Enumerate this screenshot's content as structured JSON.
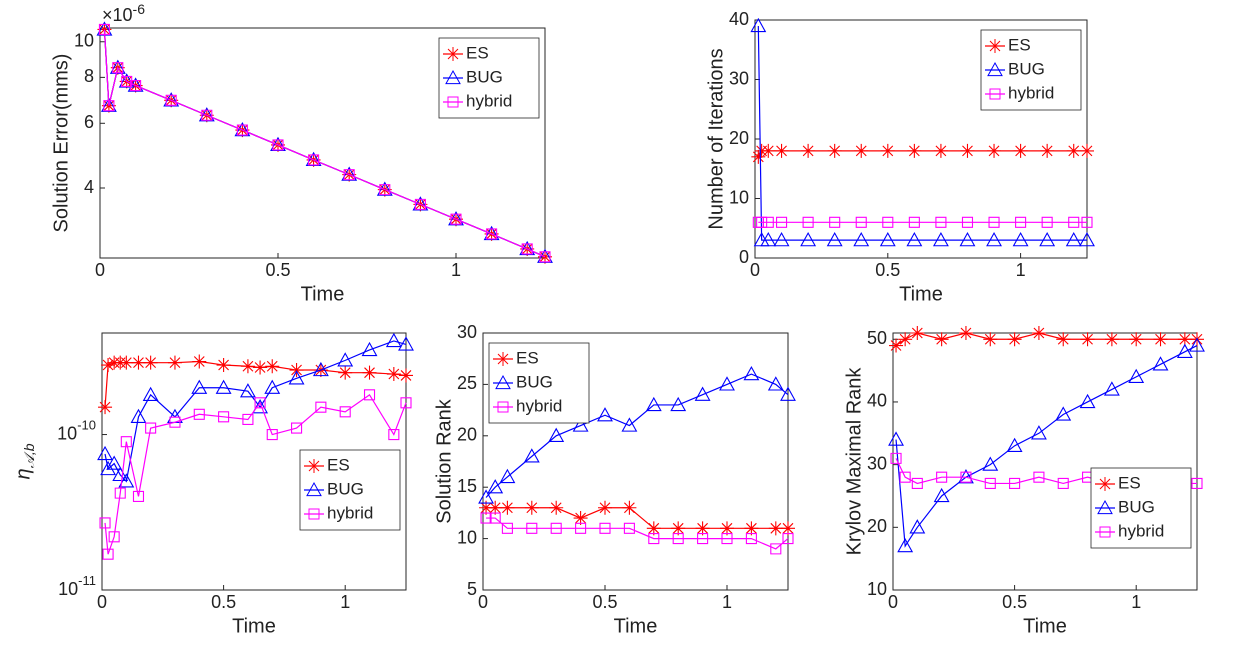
{
  "chart_data": [
    {
      "type": "line",
      "xlabel": "Time",
      "ylabel": "Solution Error(mms)",
      "ylog": true,
      "y_exponent": {
        "base": "×10",
        "power": "-6"
      },
      "xlim": [
        0,
        1.25
      ],
      "xticks": [
        0,
        0.5,
        1
      ],
      "ylim": [
        2.58e-06,
        1.09e-05
      ],
      "yticks": [
        {
          "value": 4e-06,
          "label": "4"
        },
        {
          "value": 6e-06,
          "label": "6"
        },
        {
          "value": 8e-06,
          "label": "8"
        },
        {
          "value": 1e-05,
          "label": "10"
        }
      ],
      "legend": "upper right",
      "x": [
        0.0125,
        0.025,
        0.05,
        0.075,
        0.1,
        0.2,
        0.3,
        0.4,
        0.5,
        0.6,
        0.7,
        0.8,
        0.9,
        1.0,
        1.1,
        1.2,
        1.25
      ],
      "series": [
        {
          "name": "ES",
          "color": "#ff0000",
          "marker": "star",
          "values": [
            1.08e-05,
            6.7e-06,
            8.5e-06,
            7.8e-06,
            7.6e-06,
            6.93e-06,
            6.31e-06,
            5.75e-06,
            5.24e-06,
            4.77e-06,
            4.35e-06,
            3.96e-06,
            3.61e-06,
            3.29e-06,
            3e-06,
            2.73e-06,
            2.6e-06
          ]
        },
        {
          "name": "BUG",
          "color": "#0000ff",
          "marker": "triangle",
          "values": [
            1.08e-05,
            6.7e-06,
            8.5e-06,
            7.8e-06,
            7.6e-06,
            6.93e-06,
            6.31e-06,
            5.75e-06,
            5.24e-06,
            4.77e-06,
            4.35e-06,
            3.96e-06,
            3.61e-06,
            3.29e-06,
            3e-06,
            2.73e-06,
            2.6e-06
          ]
        },
        {
          "name": "hybrid",
          "color": "#ff00ff",
          "marker": "square",
          "values": [
            1.08e-05,
            6.7e-06,
            8.5e-06,
            7.8e-06,
            7.6e-06,
            6.93e-06,
            6.31e-06,
            5.75e-06,
            5.24e-06,
            4.77e-06,
            4.35e-06,
            3.96e-06,
            3.61e-06,
            3.29e-06,
            3e-06,
            2.73e-06,
            2.6e-06
          ]
        }
      ]
    },
    {
      "type": "line",
      "xlabel": "Time",
      "ylabel": "Number of Iterations",
      "ylog": false,
      "xlim": [
        0,
        1.25
      ],
      "xticks": [
        0,
        0.5,
        1
      ],
      "ylim": [
        0,
        40
      ],
      "yticks": [
        0,
        10,
        20,
        30,
        40
      ],
      "legend": "upper right",
      "x": [
        0.0125,
        0.025,
        0.05,
        0.1,
        0.2,
        0.3,
        0.4,
        0.5,
        0.6,
        0.7,
        0.8,
        0.9,
        1.0,
        1.1,
        1.2,
        1.25
      ],
      "series": [
        {
          "name": "ES",
          "color": "#ff0000",
          "marker": "star",
          "values": [
            17,
            18,
            18,
            18,
            18,
            18,
            18,
            18,
            18,
            18,
            18,
            18,
            18,
            18,
            18,
            18
          ]
        },
        {
          "name": "BUG",
          "color": "#0000ff",
          "marker": "triangle",
          "values": [
            39,
            3,
            3,
            3,
            3,
            3,
            3,
            3,
            3,
            3,
            3,
            3,
            3,
            3,
            3,
            3
          ]
        },
        {
          "name": "hybrid",
          "color": "#ff00ff",
          "marker": "square",
          "values": [
            6,
            6,
            6,
            6,
            6,
            6,
            6,
            6,
            6,
            6,
            6,
            6,
            6,
            6,
            6,
            6
          ]
        }
      ]
    },
    {
      "type": "line",
      "xlabel": "Time",
      "ylabel": "η",
      "ylabel_sub": "𝒜,b",
      "ylog": true,
      "xlim": [
        0,
        1.25
      ],
      "xticks": [
        0,
        0.5,
        1
      ],
      "ylim": [
        1e-11,
        4.5e-10
      ],
      "yticks": [
        {
          "value": 1e-11,
          "label": "10^-11"
        },
        {
          "value": 1e-10,
          "label": "10^-10"
        }
      ],
      "legend": "lower right",
      "x": [
        0.0125,
        0.025,
        0.05,
        0.075,
        0.1,
        0.15,
        0.2,
        0.3,
        0.4,
        0.5,
        0.6,
        0.65,
        0.7,
        0.8,
        0.9,
        1.0,
        1.1,
        1.2,
        1.25
      ],
      "series": [
        {
          "name": "ES",
          "color": "#ff0000",
          "marker": "star",
          "values": [
            1.5e-10,
            2.8e-10,
            2.9e-10,
            2.9e-10,
            2.9e-10,
            2.9e-10,
            2.9e-10,
            2.9e-10,
            2.95e-10,
            2.8e-10,
            2.75e-10,
            2.7e-10,
            2.75e-10,
            2.6e-10,
            2.6e-10,
            2.5e-10,
            2.5e-10,
            2.45e-10,
            2.4e-10
          ]
        },
        {
          "name": "BUG",
          "color": "#0000ff",
          "marker": "triangle",
          "values": [
            7.5e-11,
            6e-11,
            6.5e-11,
            5.5e-11,
            5e-11,
            1.3e-10,
            1.8e-10,
            1.3e-10,
            2e-10,
            2e-10,
            1.9e-10,
            1.5e-10,
            2e-10,
            2.3e-10,
            2.6e-10,
            3e-10,
            3.5e-10,
            4e-10,
            3.8e-10
          ]
        },
        {
          "name": "hybrid",
          "color": "#ff00ff",
          "marker": "square",
          "values": [
            2.7e-11,
            1.7e-11,
            2.2e-11,
            4.2e-11,
            9e-11,
            4e-11,
            1.1e-10,
            1.2e-10,
            1.35e-10,
            1.3e-10,
            1.25e-10,
            1.6e-10,
            1e-10,
            1.1e-10,
            1.5e-10,
            1.4e-10,
            1.8e-10,
            1e-10,
            1.6e-10
          ]
        }
      ]
    },
    {
      "type": "line",
      "xlabel": "Time",
      "ylabel": "Solution Rank",
      "ylog": false,
      "xlim": [
        0,
        1.25
      ],
      "xticks": [
        0,
        0.5,
        1
      ],
      "ylim": [
        5,
        30
      ],
      "yticks": [
        5,
        10,
        15,
        20,
        25,
        30
      ],
      "legend": "upper left",
      "x": [
        0.0125,
        0.05,
        0.1,
        0.2,
        0.3,
        0.4,
        0.5,
        0.6,
        0.7,
        0.8,
        0.9,
        1.0,
        1.1,
        1.2,
        1.25
      ],
      "series": [
        {
          "name": "ES",
          "color": "#ff0000",
          "marker": "star",
          "values": [
            13,
            13,
            13,
            13,
            13,
            12,
            13,
            13,
            11,
            11,
            11,
            11,
            11,
            11,
            11
          ]
        },
        {
          "name": "BUG",
          "color": "#0000ff",
          "marker": "triangle",
          "values": [
            14,
            15,
            16,
            18,
            20,
            21,
            22,
            21,
            23,
            23,
            24,
            25,
            26,
            25,
            24
          ]
        },
        {
          "name": "hybrid",
          "color": "#ff00ff",
          "marker": "square",
          "values": [
            12,
            12,
            11,
            11,
            11,
            11,
            11,
            11,
            10,
            10,
            10,
            10,
            10,
            9,
            10
          ]
        }
      ]
    },
    {
      "type": "line",
      "xlabel": "Time",
      "ylabel": "Krylov Maximal Rank",
      "ylog": false,
      "xlim": [
        0,
        1.25
      ],
      "xticks": [
        0,
        0.5,
        1
      ],
      "ylim": [
        10,
        51
      ],
      "yticks": [
        10,
        20,
        30,
        40,
        50
      ],
      "legend": "lower right",
      "x": [
        0.0125,
        0.05,
        0.1,
        0.2,
        0.3,
        0.4,
        0.5,
        0.6,
        0.7,
        0.8,
        0.9,
        1.0,
        1.1,
        1.2,
        1.25
      ],
      "series": [
        {
          "name": "ES",
          "color": "#ff0000",
          "marker": "star",
          "values": [
            49,
            50,
            51,
            50,
            51,
            50,
            50,
            51,
            50,
            50,
            50,
            50,
            50,
            50,
            50
          ]
        },
        {
          "name": "BUG",
          "color": "#0000ff",
          "marker": "triangle",
          "values": [
            34,
            17,
            20,
            25,
            28,
            30,
            33,
            35,
            38,
            40,
            42,
            44,
            46,
            48,
            49
          ]
        },
        {
          "name": "hybrid",
          "color": "#ff00ff",
          "marker": "square",
          "values": [
            31,
            28,
            27,
            28,
            28,
            27,
            27,
            28,
            27,
            28,
            27,
            28,
            27,
            27,
            27
          ]
        }
      ]
    }
  ]
}
